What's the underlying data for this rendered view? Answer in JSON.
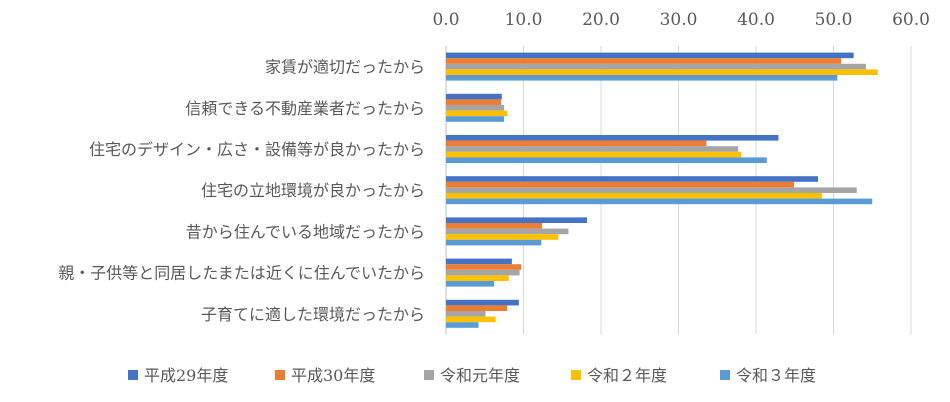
{
  "chart_data": {
    "type": "bar",
    "orientation": "horizontal",
    "title": "",
    "xlabel": "",
    "ylabel": "",
    "xlim": [
      0,
      60
    ],
    "x_ticks": [
      "0.0",
      "10.0",
      "20.0",
      "30.0",
      "40.0",
      "50.0",
      "60.0"
    ],
    "x_axis_position": "top",
    "grid": true,
    "legend_position": "bottom",
    "categories": [
      "家賃が適切だったから",
      "信頼できる不動産業者だったから",
      "住宅のデザイン・広さ・設備等が良かったから",
      "住宅の立地環境が良かったから",
      "昔から住んでいる地域だったから",
      "親・子供等と同居したまたは近くに住んでいたから",
      "子育てに適した環境だったから"
    ],
    "series": [
      {
        "name": "平成29年度",
        "color": "#4472C4",
        "values": [
          52.6,
          7.2,
          42.9,
          48.0,
          18.2,
          8.5,
          9.4
        ]
      },
      {
        "name": "平成30年度",
        "color": "#ED7D31",
        "values": [
          51.0,
          7.1,
          33.6,
          44.9,
          12.4,
          9.7,
          7.9
        ]
      },
      {
        "name": "令和元年度",
        "color": "#A5A5A5",
        "values": [
          54.2,
          7.5,
          37.7,
          53.0,
          15.8,
          9.5,
          5.1
        ]
      },
      {
        "name": "令和２年度",
        "color": "#FFC000",
        "values": [
          55.7,
          7.9,
          38.1,
          48.5,
          14.5,
          8.1,
          6.4
        ]
      },
      {
        "name": "令和３年度",
        "color": "#5B9BD5",
        "values": [
          50.5,
          7.5,
          41.4,
          55.0,
          12.3,
          6.2,
          4.2
        ]
      }
    ]
  }
}
